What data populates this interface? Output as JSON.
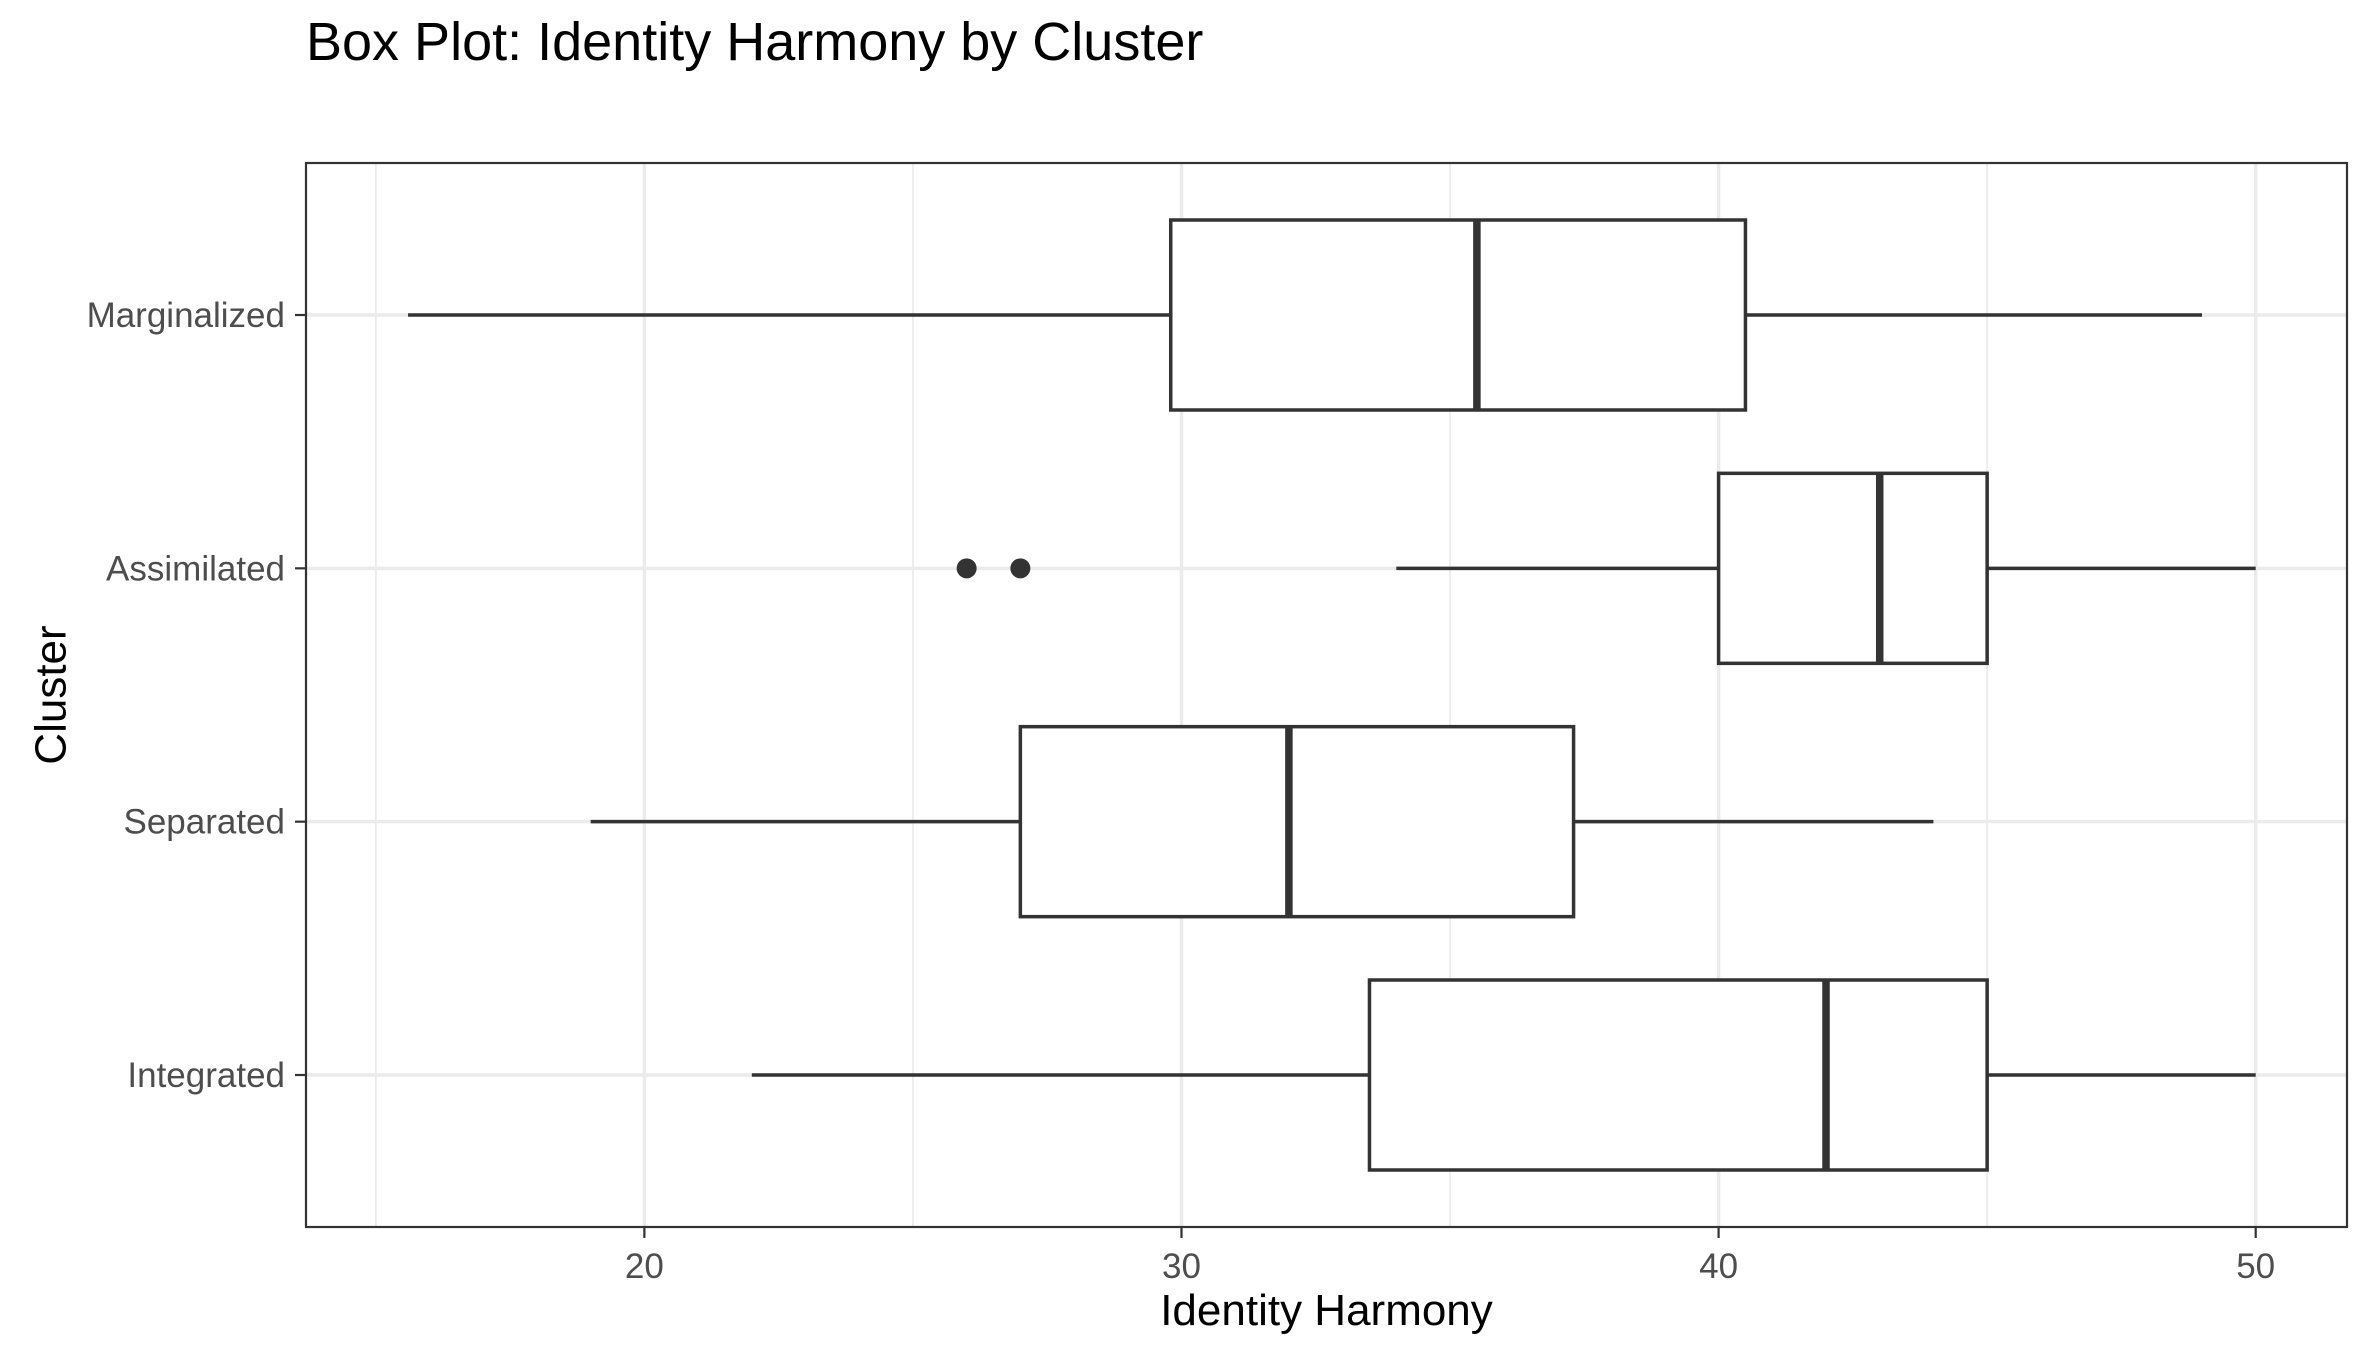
{
  "chart_data": {
    "type": "boxplot",
    "orientation": "horizontal",
    "title": "Box Plot: Identity Harmony by Cluster",
    "xlabel": "Identity Harmony",
    "ylabel": "Cluster",
    "xlim": [
      13.7,
      51.7
    ],
    "x_ticks": [
      20,
      30,
      40,
      50
    ],
    "x_minor_ticks": [
      15,
      25,
      35,
      45
    ],
    "grid": true,
    "legend": "none",
    "categories": [
      "Integrated",
      "Separated",
      "Assimilated",
      "Marginalized"
    ],
    "boxes": [
      {
        "category": "Integrated",
        "whisker_low": 22,
        "q1": 33.5,
        "median": 42,
        "q3": 45,
        "whisker_high": 50,
        "outliers": []
      },
      {
        "category": "Separated",
        "whisker_low": 19,
        "q1": 27,
        "median": 32,
        "q3": 37.3,
        "whisker_high": 44,
        "outliers": []
      },
      {
        "category": "Assimilated",
        "whisker_low": 34,
        "q1": 40,
        "median": 43,
        "q3": 45,
        "whisker_high": 50,
        "outliers": [
          26,
          27
        ]
      },
      {
        "category": "Marginalized",
        "whisker_low": 15.6,
        "q1": 29.8,
        "median": 35.5,
        "q3": 40.5,
        "whisker_high": 49,
        "outliers": []
      }
    ]
  }
}
